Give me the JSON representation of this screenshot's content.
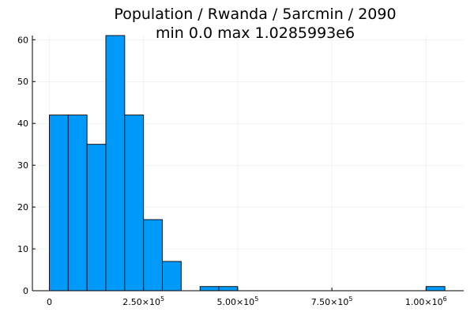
{
  "chart_data": {
    "type": "bar",
    "title_lines": [
      "Population / Rwanda / 5arcmin / 2090",
      "min 0.0  max 1.0285993e6"
    ],
    "xlabel": "",
    "ylabel": "",
    "bin_width": 50000,
    "bins": [
      {
        "start": 0,
        "end": 50000,
        "count": 42
      },
      {
        "start": 50000,
        "end": 100000,
        "count": 42
      },
      {
        "start": 100000,
        "end": 150000,
        "count": 35
      },
      {
        "start": 150000,
        "end": 200000,
        "count": 61
      },
      {
        "start": 200000,
        "end": 250000,
        "count": 42
      },
      {
        "start": 250000,
        "end": 300000,
        "count": 17
      },
      {
        "start": 300000,
        "end": 350000,
        "count": 7
      },
      {
        "start": 350000,
        "end": 400000,
        "count": 0
      },
      {
        "start": 400000,
        "end": 450000,
        "count": 1
      },
      {
        "start": 450000,
        "end": 500000,
        "count": 1
      },
      {
        "start": 1000000,
        "end": 1050000,
        "count": 1
      }
    ],
    "xlim": [
      -45000,
      1100000
    ],
    "ylim": [
      0,
      61
    ],
    "x_ticks": [
      {
        "value": 0,
        "label": "0",
        "exponent": ""
      },
      {
        "value": 250000,
        "label": "2.50×10",
        "exponent": "5"
      },
      {
        "value": 500000,
        "label": "5.00×10",
        "exponent": "5"
      },
      {
        "value": 750000,
        "label": "7.50×10",
        "exponent": "5"
      },
      {
        "value": 1000000,
        "label": "1.00×10",
        "exponent": "6"
      }
    ],
    "y_ticks": [
      {
        "value": 0,
        "label": "0"
      },
      {
        "value": 10,
        "label": "10"
      },
      {
        "value": 20,
        "label": "20"
      },
      {
        "value": 30,
        "label": "30"
      },
      {
        "value": 40,
        "label": "40"
      },
      {
        "value": 50,
        "label": "50"
      },
      {
        "value": 60,
        "label": "60"
      }
    ],
    "grid": true,
    "legend": "none",
    "bar_color": "#009AFA",
    "bar_edge_color": "#000000"
  }
}
